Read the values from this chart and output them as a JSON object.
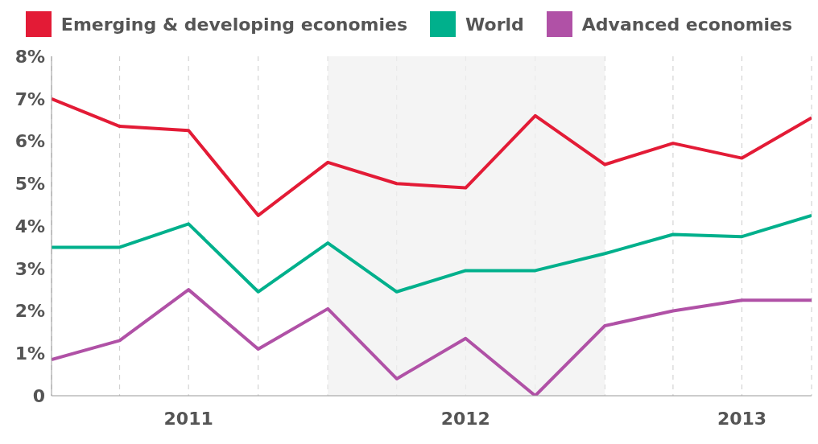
{
  "chart_data": {
    "type": "line",
    "x": [
      "2011-01",
      "2011-04",
      "2011-07",
      "2011-10",
      "2012-01",
      "2012-04",
      "2012-07",
      "2012-10",
      "2013-01",
      "2013-04",
      "2013-07",
      "2013-10"
    ],
    "xlim": [
      "2011-01",
      "2013-10"
    ],
    "xticks": [
      {
        "value": "2011-04",
        "label": null
      },
      {
        "value": "2011-07",
        "label": "2011"
      },
      {
        "value": "2011-10",
        "label": null
      },
      {
        "value": "2012-01",
        "label": null
      },
      {
        "value": "2012-04",
        "label": null
      },
      {
        "value": "2012-07",
        "label": "2012"
      },
      {
        "value": "2012-10",
        "label": null
      },
      {
        "value": "2013-01",
        "label": null
      },
      {
        "value": "2013-04",
        "label": null
      },
      {
        "value": "2013-07",
        "label": "2013"
      },
      {
        "value": "2013-10",
        "label": null
      }
    ],
    "ylim": [
      0,
      8
    ],
    "yticks": [
      {
        "value": 0,
        "label": "0"
      },
      {
        "value": 1,
        "label": "1%"
      },
      {
        "value": 2,
        "label": "2%"
      },
      {
        "value": 3,
        "label": "3%"
      },
      {
        "value": 4,
        "label": "4%"
      },
      {
        "value": 5,
        "label": "5%"
      },
      {
        "value": 6,
        "label": "6%"
      },
      {
        "value": 7,
        "label": "7%"
      },
      {
        "value": 8,
        "label": "8%"
      }
    ],
    "grid": "x",
    "legend": "top",
    "marker": "none",
    "line_style": "solid",
    "bands": [
      {
        "axis": "x",
        "from": "2012-01",
        "to": "2013-01",
        "color": "#f0f0f0"
      }
    ],
    "series": [
      {
        "name": "Emerging & developing economies",
        "color": "#e31b36",
        "values": [
          7.0,
          6.35,
          6.25,
          4.25,
          5.5,
          5.0,
          4.9,
          6.6,
          5.45,
          5.95,
          5.6,
          6.55
        ]
      },
      {
        "name": "World",
        "color": "#00b08c",
        "values": [
          3.5,
          3.5,
          4.05,
          2.45,
          3.6,
          2.45,
          2.95,
          2.95,
          3.35,
          3.8,
          3.75,
          4.25
        ]
      },
      {
        "name": "Advanced economies",
        "color": "#b051a6",
        "values": [
          0.85,
          1.3,
          2.5,
          1.1,
          2.05,
          0.4,
          1.35,
          0,
          1.65,
          2.0,
          2.25,
          2.25
        ]
      }
    ]
  }
}
